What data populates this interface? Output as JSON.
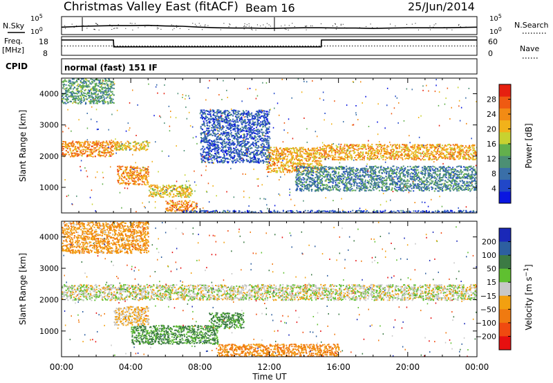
{
  "header": {
    "title": "Christmas Valley East (fitACF)",
    "beam": "Beam 16",
    "date": "25/Jun/2014"
  },
  "mini_labels": {
    "nsky": "N.Sky",
    "nsearch": "N.Search",
    "freq_line1": "Freq.",
    "freq_line2": "[MHz]",
    "nave": "Nave",
    "cpid": "CPID",
    "cpid_value": "normal (fast) 151 IF",
    "noise_ticks_top": "10^5",
    "noise_ticks_bottom": "10^0",
    "freq_ticks": [
      "18",
      "8"
    ],
    "nave_ticks": [
      "60",
      "0"
    ]
  },
  "chart_data": [
    {
      "type": "line",
      "name": "noise",
      "x_unit": "hours UT",
      "xlim": [
        0,
        24
      ],
      "x": [
        0,
        1.2,
        2,
        3,
        4,
        5,
        6,
        7,
        8,
        9,
        10,
        11,
        12,
        13,
        14,
        15,
        16,
        17,
        18,
        19,
        20,
        21,
        22,
        23,
        24
      ],
      "nsky": [
        2.2,
        2.5,
        2.6,
        2.7,
        2.7,
        2.8,
        2.6,
        2.5,
        2.2,
        2.0,
        1.9,
        1.9,
        1.8,
        1.9,
        2.0,
        2.0,
        1.9,
        1.9,
        1.8,
        1.9,
        2.0,
        2.0,
        2.0,
        2.1,
        2.2
      ],
      "ylabels": [
        "10^5",
        "10^0"
      ]
    },
    {
      "type": "line",
      "name": "frequency",
      "x": [
        0,
        3,
        3.02,
        15,
        15.02,
        24
      ],
      "freq_mhz": [
        16.5,
        16.5,
        12.5,
        12.5,
        16.5,
        16.5
      ],
      "nave": [
        30,
        30,
        30,
        30,
        30,
        30
      ],
      "ylim_freq": [
        8,
        18
      ],
      "ylim_nave": [
        0,
        60
      ]
    },
    {
      "type": "heatmap",
      "name": "power",
      "x_label": "Time UT",
      "y_label": "Slant Range [km]",
      "xlim": [
        0,
        24
      ],
      "ylim": [
        180,
        4500
      ],
      "x_ticks": [
        "00:00",
        "04:00",
        "08:00",
        "12:00",
        "16:00",
        "20:00",
        "00:00"
      ],
      "y_ticks": [
        1000,
        2000,
        3000,
        4000
      ],
      "colorbar_label": "Power [dB]",
      "colorbar_ticks": [
        4,
        8,
        12,
        16,
        20,
        24,
        28
      ],
      "colors": [
        "#0a16e0",
        "#2147c8",
        "#3a6fa8",
        "#4c8f74",
        "#63b04c",
        "#c8d230",
        "#f2b21a",
        "#f28b14",
        "#ef5a12",
        "#e62010"
      ],
      "features": [
        {
          "range_km": [
            2000,
            2500
          ],
          "x": [
            0,
            3.0
          ],
          "db": 24
        },
        {
          "range_km": [
            2200,
            2500
          ],
          "x": [
            3.0,
            5.0
          ],
          "db": 20
        },
        {
          "range_km": [
            1100,
            1700
          ],
          "x": [
            3.2,
            5.0
          ],
          "db": 24
        },
        {
          "range_km": [
            700,
            1100
          ],
          "x": [
            5.0,
            7.5
          ],
          "db": 20
        },
        {
          "range_km": [
            250,
            600
          ],
          "x": [
            6.0,
            7.8
          ],
          "db": 24
        },
        {
          "range_km": [
            1500,
            2300
          ],
          "x": [
            11.8,
            15.0
          ],
          "db": 22
        },
        {
          "range_km": [
            1900,
            2400
          ],
          "x": [
            15.0,
            24
          ],
          "db": 22
        },
        {
          "range_km": [
            900,
            1700
          ],
          "x": [
            13.5,
            24
          ],
          "db": 10
        },
        {
          "range_km": [
            1800,
            3500
          ],
          "x": [
            8.0,
            12.0
          ],
          "db": 6
        },
        {
          "range_km": [
            180,
            280
          ],
          "x": [
            7.0,
            24
          ],
          "db": 6
        },
        {
          "range_km": [
            3700,
            4500
          ],
          "x": [
            0,
            3.0
          ],
          "db": 12
        }
      ]
    },
    {
      "type": "heatmap",
      "name": "velocity",
      "x_label": "Time UT",
      "y_label": "Slant Range [km]",
      "xlim": [
        0,
        24
      ],
      "ylim": [
        180,
        4500
      ],
      "x_ticks": [
        "00:00",
        "04:00",
        "08:00",
        "12:00",
        "16:00",
        "20:00",
        "00:00"
      ],
      "y_ticks": [
        1000,
        2000,
        3000,
        4000
      ],
      "colorbar_label": "Velocity [m s^-1]",
      "colorbar_ticks": [
        200,
        100,
        50,
        15,
        -15,
        -50,
        -100,
        -200
      ],
      "colors": [
        "#1a28b8",
        "#2d5fa0",
        "#3c7a44",
        "#5fc030",
        "#c8c8c8",
        "#f2a010",
        "#f07a10",
        "#f04a10",
        "#e61010"
      ],
      "features": [
        {
          "range_km": [
            2000,
            2500
          ],
          "x": [
            0,
            24
          ],
          "ms": 0
        },
        {
          "range_km": [
            600,
            1200
          ],
          "x": [
            4.0,
            9.0
          ],
          "ms": 60
        },
        {
          "range_km": [
            1100,
            1600
          ],
          "x": [
            8.5,
            10.5
          ],
          "ms": 60
        },
        {
          "range_km": [
            1200,
            1800
          ],
          "x": [
            3.0,
            5.0
          ],
          "ms": -20
        },
        {
          "range_km": [
            180,
            600
          ],
          "x": [
            9.0,
            16.0
          ],
          "ms": -60
        },
        {
          "range_km": [
            3500,
            4500
          ],
          "x": [
            0,
            5.0
          ],
          "ms": -40
        }
      ]
    }
  ]
}
